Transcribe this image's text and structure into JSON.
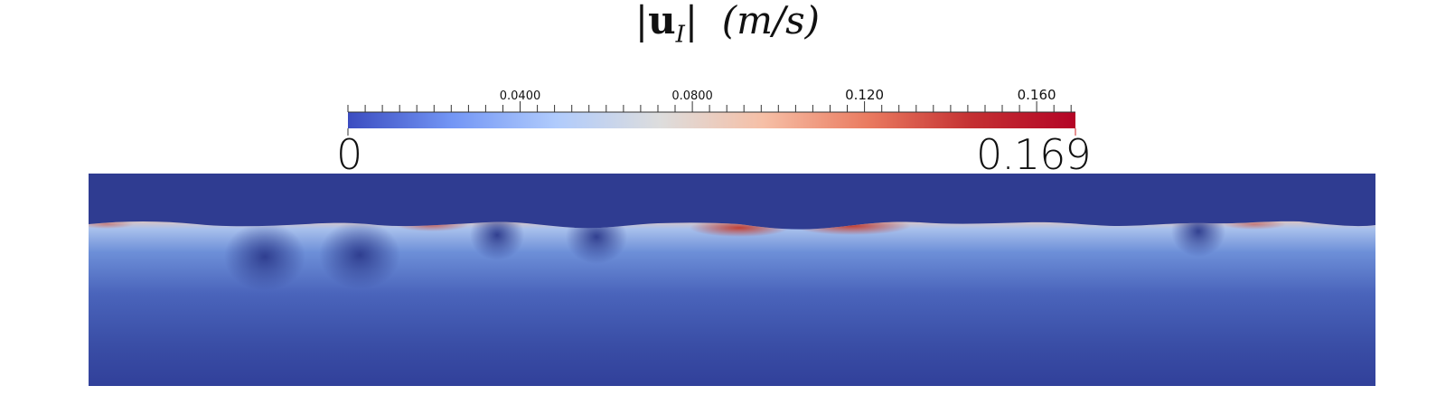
{
  "title": {
    "prefix": "|",
    "symbol": "u",
    "subscript": "I",
    "suffix": "|",
    "units": "(m/s)"
  },
  "colorbar": {
    "min_label": "0",
    "max_label": "0.169",
    "min_value": 0,
    "max_value": 0.169,
    "tick_labels": [
      "0.0400",
      "0.0800",
      "0.120",
      "0.160"
    ],
    "tick_values": [
      0.04,
      0.08,
      0.12,
      0.16
    ],
    "colormap": "cool-to-warm",
    "colors": [
      "#3b4cc0",
      "#7396f5",
      "#b0cbfc",
      "#dddddd",
      "#f6bfa6",
      "#ea7b60",
      "#c43032",
      "#b40426"
    ]
  },
  "field": {
    "background_color": "#2f3c91",
    "surface_color": "#d25a3c"
  }
}
